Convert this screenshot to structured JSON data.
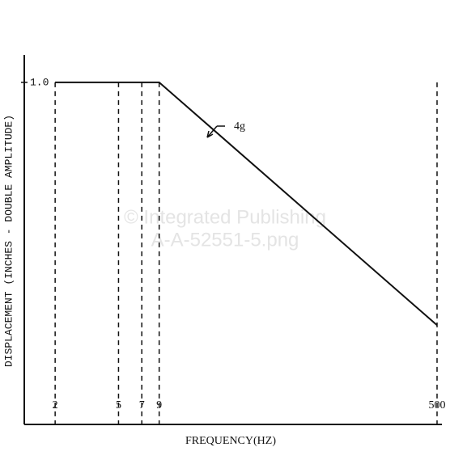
{
  "chart_data": {
    "type": "line",
    "xlabel": "FREQUENCY(HZ)",
    "ylabel": "DISPLACEMENT (INCHES - DOUBLE AMPLITUDE)",
    "annotation": "4g",
    "watermark": [
      "© Integrated Publishing",
      "A-A-52551-5.png"
    ],
    "xscale": "log",
    "xlim": [
      1.28,
      500
    ],
    "xticks": [
      2,
      5,
      7,
      9,
      500
    ],
    "ylim": [
      0,
      1.08
    ],
    "yticks": [
      {
        "value": 1.0,
        "label": "1.0"
      }
    ],
    "grid": true,
    "series": [
      {
        "color": "#111111",
        "x": [
          2,
          9,
          500
        ],
        "values": [
          1.0,
          1.0,
          0.29
        ]
      }
    ]
  }
}
